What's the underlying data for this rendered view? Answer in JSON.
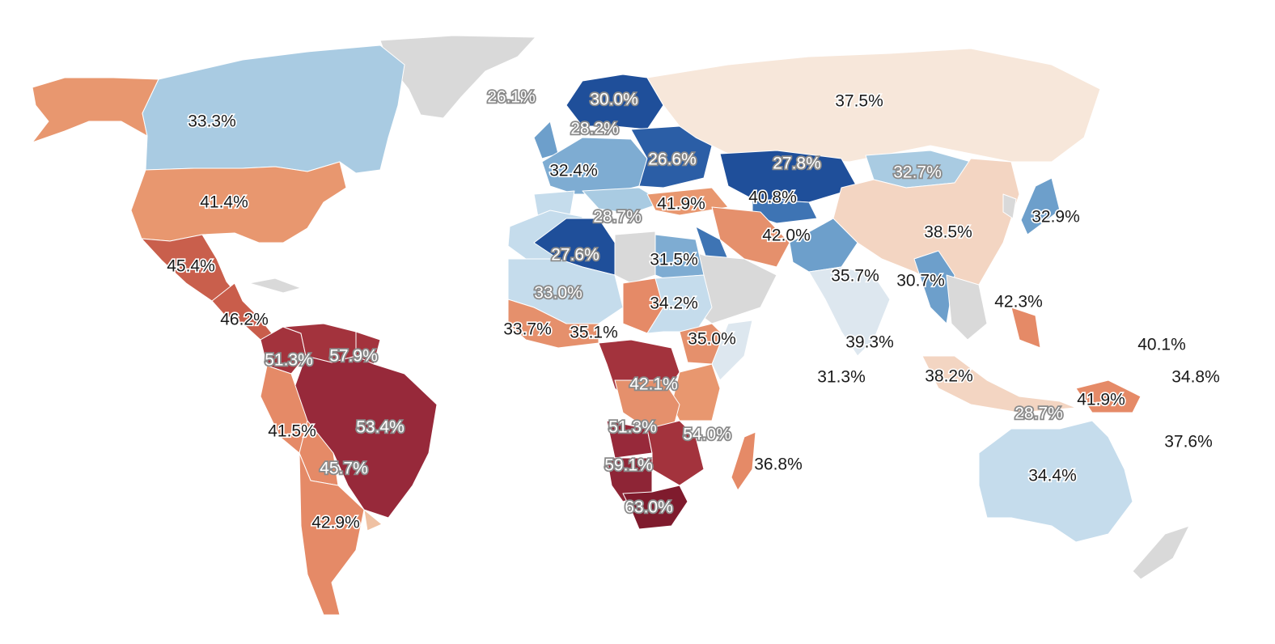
{
  "map": {
    "colors": {
      "no_data": "#d9d9d9",
      "r63": "#7f1b2d",
      "r59": "#8e2536",
      "r54": "#982c3a",
      "r53": "#97293a",
      "r51": "#a3333d",
      "r46": "#c95d4b",
      "r45": "#c95f4c",
      "r43": "#e58a67",
      "r42": "#e5906c",
      "r41": "#e8976f",
      "r40": "#efc1a3",
      "r38": "#f3d5c2",
      "r37": "#f7e7da",
      "r36": "#dde7ef",
      "b35": "#d4e4f0",
      "b34": "#c5dcec",
      "b33": "#a9cbe2",
      "b32": "#7eacd2",
      "b31": "#6d9fcb",
      "b30": "#3e74b4",
      "b28": "#2b5ea6",
      "b27": "#1f4f9a",
      "b26": "#163f86"
    },
    "labels": [
      {
        "text": "33.3%",
        "style": "dark"
      },
      {
        "text": "41.4%",
        "style": "dark"
      },
      {
        "text": "45.4%",
        "style": "dark"
      },
      {
        "text": "46.2%",
        "style": "dark"
      },
      {
        "text": "51.3%",
        "style": "light"
      },
      {
        "text": "57.9%",
        "style": "light"
      },
      {
        "text": "53.4%",
        "style": "light"
      },
      {
        "text": "41.5%",
        "style": "dark"
      },
      {
        "text": "45.7%",
        "style": "light"
      },
      {
        "text": "42.9%",
        "style": "dark"
      },
      {
        "text": "26.1%",
        "style": "light"
      },
      {
        "text": "30.0%",
        "style": "light"
      },
      {
        "text": "28.2%",
        "style": "light"
      },
      {
        "text": "32.4%",
        "style": "dark"
      },
      {
        "text": "26.6%",
        "style": "light"
      },
      {
        "text": "28.7%",
        "style": "light"
      },
      {
        "text": "41.9%",
        "style": "dark"
      },
      {
        "text": "40.8%",
        "style": "dark"
      },
      {
        "text": "27.8%",
        "style": "light"
      },
      {
        "text": "37.5%",
        "style": "dark"
      },
      {
        "text": "32.7%",
        "style": "light"
      },
      {
        "text": "32.9%",
        "style": "dark"
      },
      {
        "text": "38.5%",
        "style": "dark"
      },
      {
        "text": "42.0%",
        "style": "dark"
      },
      {
        "text": "27.6%",
        "style": "light"
      },
      {
        "text": "31.5%",
        "style": "dark"
      },
      {
        "text": "33.0%",
        "style": "light"
      },
      {
        "text": "34.2%",
        "style": "dark"
      },
      {
        "text": "33.7%",
        "style": "dark"
      },
      {
        "text": "35.1%",
        "style": "dark"
      },
      {
        "text": "35.0%",
        "style": "dark"
      },
      {
        "text": "42.1%",
        "style": "light"
      },
      {
        "text": "51.3%",
        "style": "light"
      },
      {
        "text": "54.0%",
        "style": "light"
      },
      {
        "text": "59.1%",
        "style": "light"
      },
      {
        "text": "63.0%",
        "style": "light"
      },
      {
        "text": "36.8%",
        "style": "dark"
      },
      {
        "text": "35.7%",
        "style": "dark"
      },
      {
        "text": "30.7%",
        "style": "dark"
      },
      {
        "text": "39.3%",
        "style": "dark"
      },
      {
        "text": "31.3%",
        "style": "dark"
      },
      {
        "text": "42.3%",
        "style": "dark"
      },
      {
        "text": "38.2%",
        "style": "dark"
      },
      {
        "text": "28.7%",
        "style": "light"
      },
      {
        "text": "41.9%",
        "style": "dark"
      },
      {
        "text": "40.1%",
        "style": "dark"
      },
      {
        "text": "34.8%",
        "style": "dark"
      },
      {
        "text": "37.6%",
        "style": "dark"
      },
      {
        "text": "34.4%",
        "style": "dark"
      }
    ]
  }
}
